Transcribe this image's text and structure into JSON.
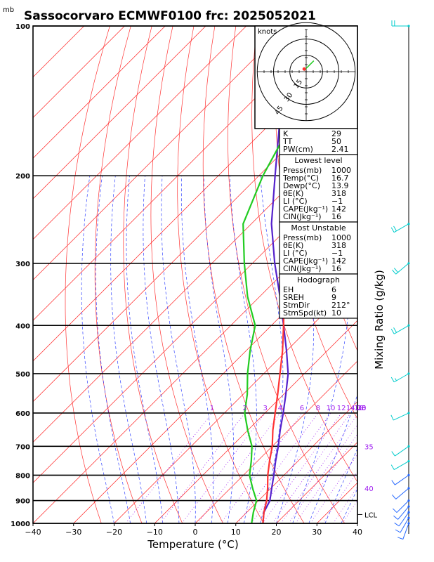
{
  "title": "Sassocorvaro ECMWF0100 frc: 2025052021",
  "units_label": "mb",
  "x_axis_label": "Temperature (°C)",
  "right_axis_label": "Mixing Ratio (g/kg)",
  "lcl_label": "LCL",
  "hodograph": {
    "units_label": "knots",
    "ring_labels": [
      "15",
      "30",
      "45"
    ],
    "hodo_points": [
      [
        -2,
        1
      ],
      [
        0,
        3
      ],
      [
        1,
        4
      ],
      [
        3,
        6
      ],
      [
        6,
        9
      ],
      [
        7,
        10
      ]
    ],
    "storm_motion": [
      -1.8,
      2.4
    ]
  },
  "indices": {
    "top": [
      {
        "label": "K",
        "value": "29"
      },
      {
        "label": "TT",
        "value": "50"
      },
      {
        "label": "PW(cm)",
        "value": "2.41"
      }
    ],
    "lowest_level_header": "Lowest level",
    "lowest_level": [
      {
        "label": "Press(mb)",
        "value": "1000"
      },
      {
        "label": "Temp(°C)",
        "value": "16.7"
      },
      {
        "label": "Dewp(°C)",
        "value": "13.9"
      },
      {
        "label": "θE(K)",
        "value": "318"
      },
      {
        "label": "LI  (°C)",
        "value": "−1"
      },
      {
        "label": "CAPE(Jkg⁻¹)",
        "value": "142"
      },
      {
        "label": "CIN(Jkg⁻¹)",
        "value": "16"
      }
    ],
    "most_unstable_header": "Most Unstable",
    "most_unstable": [
      {
        "label": "Press(mb)",
        "value": "1000"
      },
      {
        "label": "θE(K)",
        "value": "318"
      },
      {
        "label": "LI  (°C)",
        "value": "−1"
      },
      {
        "label": "CAPE(Jkg⁻¹)",
        "value": "142"
      },
      {
        "label": "CIN(Jkg⁻¹)",
        "value": "16"
      }
    ],
    "hodograph_header": "Hodograph",
    "hodograph_rows": [
      {
        "label": "EH",
        "value": "6"
      },
      {
        "label": "SREH",
        "value": "9"
      },
      {
        "label": "StmDir",
        "value": "212°"
      },
      {
        "label": "StmSpd(kt)",
        "value": "10"
      }
    ]
  },
  "colors": {
    "temperature": "#ff3333",
    "dewpoint": "#22cc22",
    "parcel": "#5522cc",
    "isotherm": "#ff2222",
    "dry_adiabat": "#ff3333",
    "moist_adiabat": "#3344ff",
    "mixing_ratio": "#a020f0",
    "wind": "#00cccc",
    "wind_low": "#2266ff"
  },
  "chart_data": {
    "type": "skew-t",
    "x_ticks": [
      -40,
      -30,
      -20,
      -10,
      0,
      10,
      20,
      30,
      40
    ],
    "p_ticks": [
      100,
      200,
      300,
      400,
      500,
      600,
      700,
      800,
      900,
      1000
    ],
    "xlim": [
      -40,
      40
    ],
    "plim": [
      1000,
      100
    ],
    "mixing_ratio_labels": [
      "1",
      "2",
      "3",
      "4",
      "6",
      "8",
      "10",
      "12",
      "14",
      "16",
      "18",
      "20",
      "25",
      "30",
      "35",
      "40"
    ],
    "temperature_profile": [
      {
        "p": 1000,
        "t": 16.7
      },
      {
        "p": 950,
        "t": 14.2
      },
      {
        "p": 900,
        "t": 12
      },
      {
        "p": 850,
        "t": 9.2
      },
      {
        "p": 800,
        "t": 6
      },
      {
        "p": 750,
        "t": 3
      },
      {
        "p": 700,
        "t": 0
      },
      {
        "p": 650,
        "t": -3.8
      },
      {
        "p": 600,
        "t": -7.5
      },
      {
        "p": 550,
        "t": -11.5
      },
      {
        "p": 500,
        "t": -16
      },
      {
        "p": 450,
        "t": -21
      },
      {
        "p": 400,
        "t": -27
      },
      {
        "p": 350,
        "t": -34
      },
      {
        "p": 300,
        "t": -41
      },
      {
        "p": 250,
        "t": -49
      },
      {
        "p": 230,
        "t": -51
      },
      {
        "p": 200,
        "t": -50
      },
      {
        "p": 150,
        "t": -50
      },
      {
        "p": 100,
        "t": -48
      }
    ],
    "dewpoint_profile": [
      {
        "p": 1000,
        "t": 13.9
      },
      {
        "p": 950,
        "t": 11.6
      },
      {
        "p": 900,
        "t": 9.5
      },
      {
        "p": 850,
        "t": 5.5
      },
      {
        "p": 800,
        "t": 1.5
      },
      {
        "p": 750,
        "t": -1.5
      },
      {
        "p": 700,
        "t": -5
      },
      {
        "p": 650,
        "t": -10
      },
      {
        "p": 600,
        "t": -15
      },
      {
        "p": 550,
        "t": -19
      },
      {
        "p": 500,
        "t": -24
      },
      {
        "p": 450,
        "t": -29
      },
      {
        "p": 400,
        "t": -34
      },
      {
        "p": 350,
        "t": -43
      },
      {
        "p": 300,
        "t": -52
      },
      {
        "p": 250,
        "t": -62
      },
      {
        "p": 200,
        "t": -69
      },
      {
        "p": 150,
        "t": -76
      },
      {
        "p": 100,
        "t": -82
      }
    ],
    "parcel_profile": [
      {
        "p": 1000,
        "t": 16.7
      },
      {
        "p": 950,
        "t": 14.2
      },
      {
        "p": 900,
        "t": 12.8
      },
      {
        "p": 850,
        "t": 10.2
      },
      {
        "p": 800,
        "t": 7.5
      },
      {
        "p": 750,
        "t": 4.5
      },
      {
        "p": 700,
        "t": 1.5
      },
      {
        "p": 650,
        "t": -2
      },
      {
        "p": 600,
        "t": -5.5
      },
      {
        "p": 550,
        "t": -9.5
      },
      {
        "p": 500,
        "t": -14
      },
      {
        "p": 450,
        "t": -20
      },
      {
        "p": 400,
        "t": -27
      },
      {
        "p": 350,
        "t": -35
      },
      {
        "p": 300,
        "t": -44.5
      },
      {
        "p": 250,
        "t": -55
      },
      {
        "p": 200,
        "t": -66
      },
      {
        "p": 150,
        "t": -80
      },
      {
        "p": 120,
        "t": -90
      }
    ],
    "lcl_p": 960,
    "wind_barbs": [
      {
        "p": 1000,
        "dir": 200,
        "spd": 10
      },
      {
        "p": 975,
        "dir": 210,
        "spd": 10
      },
      {
        "p": 950,
        "dir": 215,
        "spd": 10
      },
      {
        "p": 925,
        "dir": 220,
        "spd": 10
      },
      {
        "p": 900,
        "dir": 225,
        "spd": 10
      },
      {
        "p": 850,
        "dir": 230,
        "spd": 10
      },
      {
        "p": 800,
        "dir": 235,
        "spd": 10
      },
      {
        "p": 750,
        "dir": 240,
        "spd": 10
      },
      {
        "p": 700,
        "dir": 235,
        "spd": 10
      },
      {
        "p": 600,
        "dir": 245,
        "spd": 10
      },
      {
        "p": 500,
        "dir": 240,
        "spd": 15
      },
      {
        "p": 400,
        "dir": 240,
        "spd": 20
      },
      {
        "p": 300,
        "dir": 230,
        "spd": 20
      },
      {
        "p": 250,
        "dir": 240,
        "spd": 20
      },
      {
        "p": 100,
        "dir": 270,
        "spd": 20
      }
    ]
  }
}
